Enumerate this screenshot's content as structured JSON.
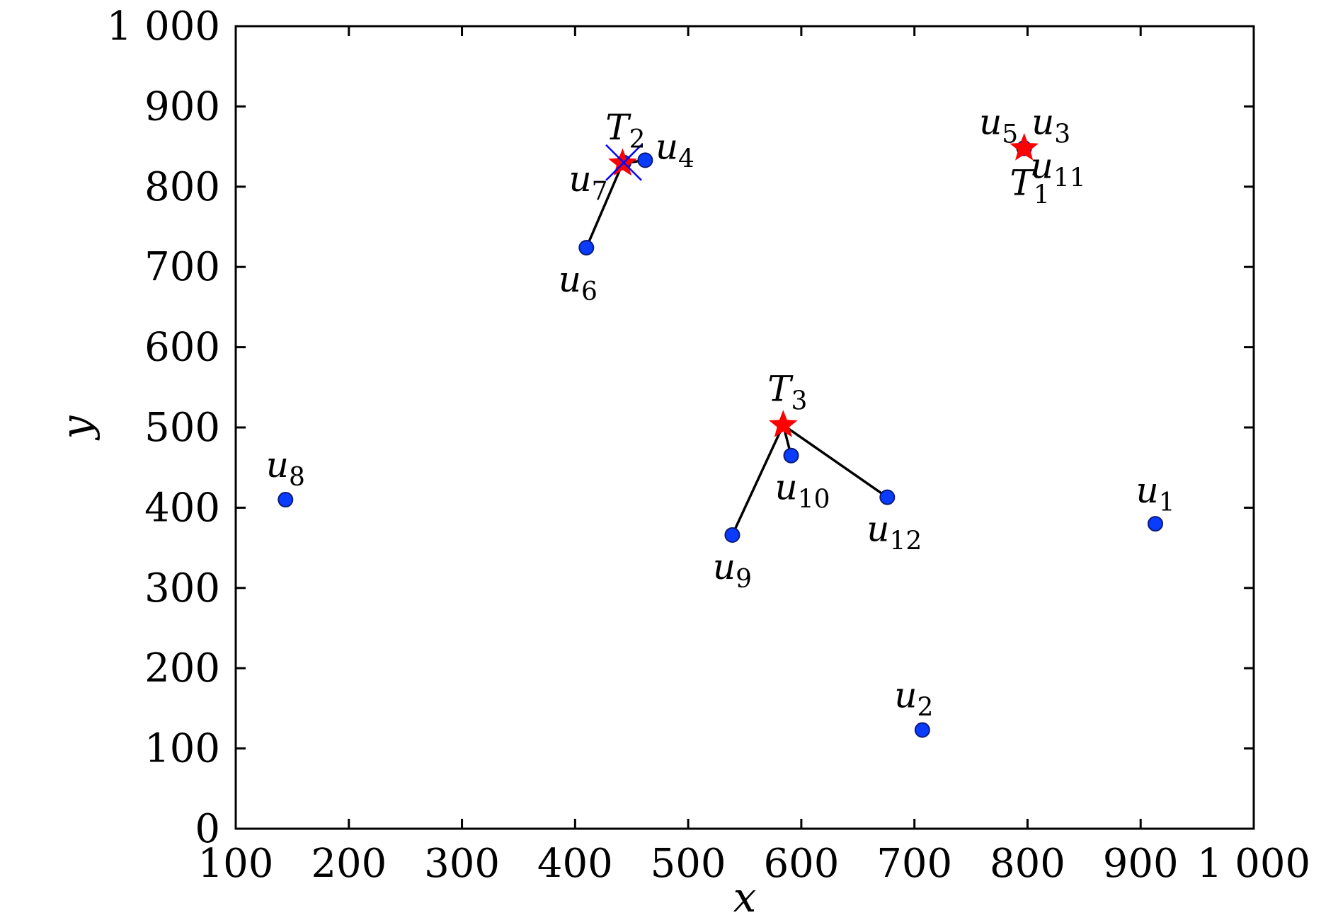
{
  "chart_data": {
    "type": "scatter",
    "title": "",
    "xlabel": "x",
    "ylabel": "y",
    "xlim": [
      100,
      1000
    ],
    "ylim": [
      0,
      1000
    ],
    "xticks": [
      100,
      200,
      300,
      400,
      500,
      600,
      700,
      800,
      900,
      1000
    ],
    "yticks": [
      0,
      100,
      200,
      300,
      400,
      500,
      600,
      700,
      800,
      900,
      1000
    ],
    "xtick_labels": [
      "100",
      "200",
      "300",
      "400",
      "500",
      "600",
      "700",
      "800",
      "900",
      "1 000"
    ],
    "ytick_labels": [
      "0",
      "100",
      "200",
      "300",
      "400",
      "500",
      "600",
      "700",
      "800",
      "900",
      "1 000"
    ],
    "grid": false,
    "colors": {
      "users": "#0a3cff",
      "user_edge": "#0a1a7a",
      "targets": "#ff0000",
      "cross": "#0000ff",
      "links": "#000000"
    },
    "users": [
      {
        "id": "u1",
        "name": "u",
        "sub": "1",
        "x": 913,
        "y": 380
      },
      {
        "id": "u2",
        "name": "u",
        "sub": "2",
        "x": 707,
        "y": 123
      },
      {
        "id": "u3",
        "name": "u",
        "sub": "3",
        "x": 797,
        "y": 848
      },
      {
        "id": "u4",
        "name": "u",
        "sub": "4",
        "x": 462,
        "y": 833
      },
      {
        "id": "u5",
        "name": "u",
        "sub": "5",
        "x": 797,
        "y": 848
      },
      {
        "id": "u6",
        "name": "u",
        "sub": "6",
        "x": 410,
        "y": 724
      },
      {
        "id": "u7",
        "name": "u",
        "sub": "7",
        "x": 443,
        "y": 830
      },
      {
        "id": "u8",
        "name": "u",
        "sub": "8",
        "x": 144,
        "y": 410
      },
      {
        "id": "u9",
        "name": "u",
        "sub": "9",
        "x": 539,
        "y": 366
      },
      {
        "id": "u10",
        "name": "u",
        "sub": "10",
        "x": 591,
        "y": 465
      },
      {
        "id": "u11",
        "name": "u",
        "sub": "11",
        "x": 797,
        "y": 848
      },
      {
        "id": "u12",
        "name": "u",
        "sub": "12",
        "x": 676,
        "y": 413
      }
    ],
    "targets": [
      {
        "id": "T1",
        "name": "T",
        "sub": "1",
        "x": 797,
        "y": 848
      },
      {
        "id": "T2",
        "name": "T",
        "sub": "2",
        "x": 442,
        "y": 829
      },
      {
        "id": "T3",
        "name": "T",
        "sub": "3",
        "x": 584,
        "y": 503
      }
    ],
    "cross_markers": [
      {
        "x": 443,
        "y": 830
      }
    ],
    "links": [
      {
        "from": "u6",
        "to": "T2"
      },
      {
        "from": "u4",
        "to": "T2"
      },
      {
        "from": "u9",
        "to": "T3"
      },
      {
        "from": "u10",
        "to": "T3"
      },
      {
        "from": "u12",
        "to": "T3"
      }
    ]
  }
}
